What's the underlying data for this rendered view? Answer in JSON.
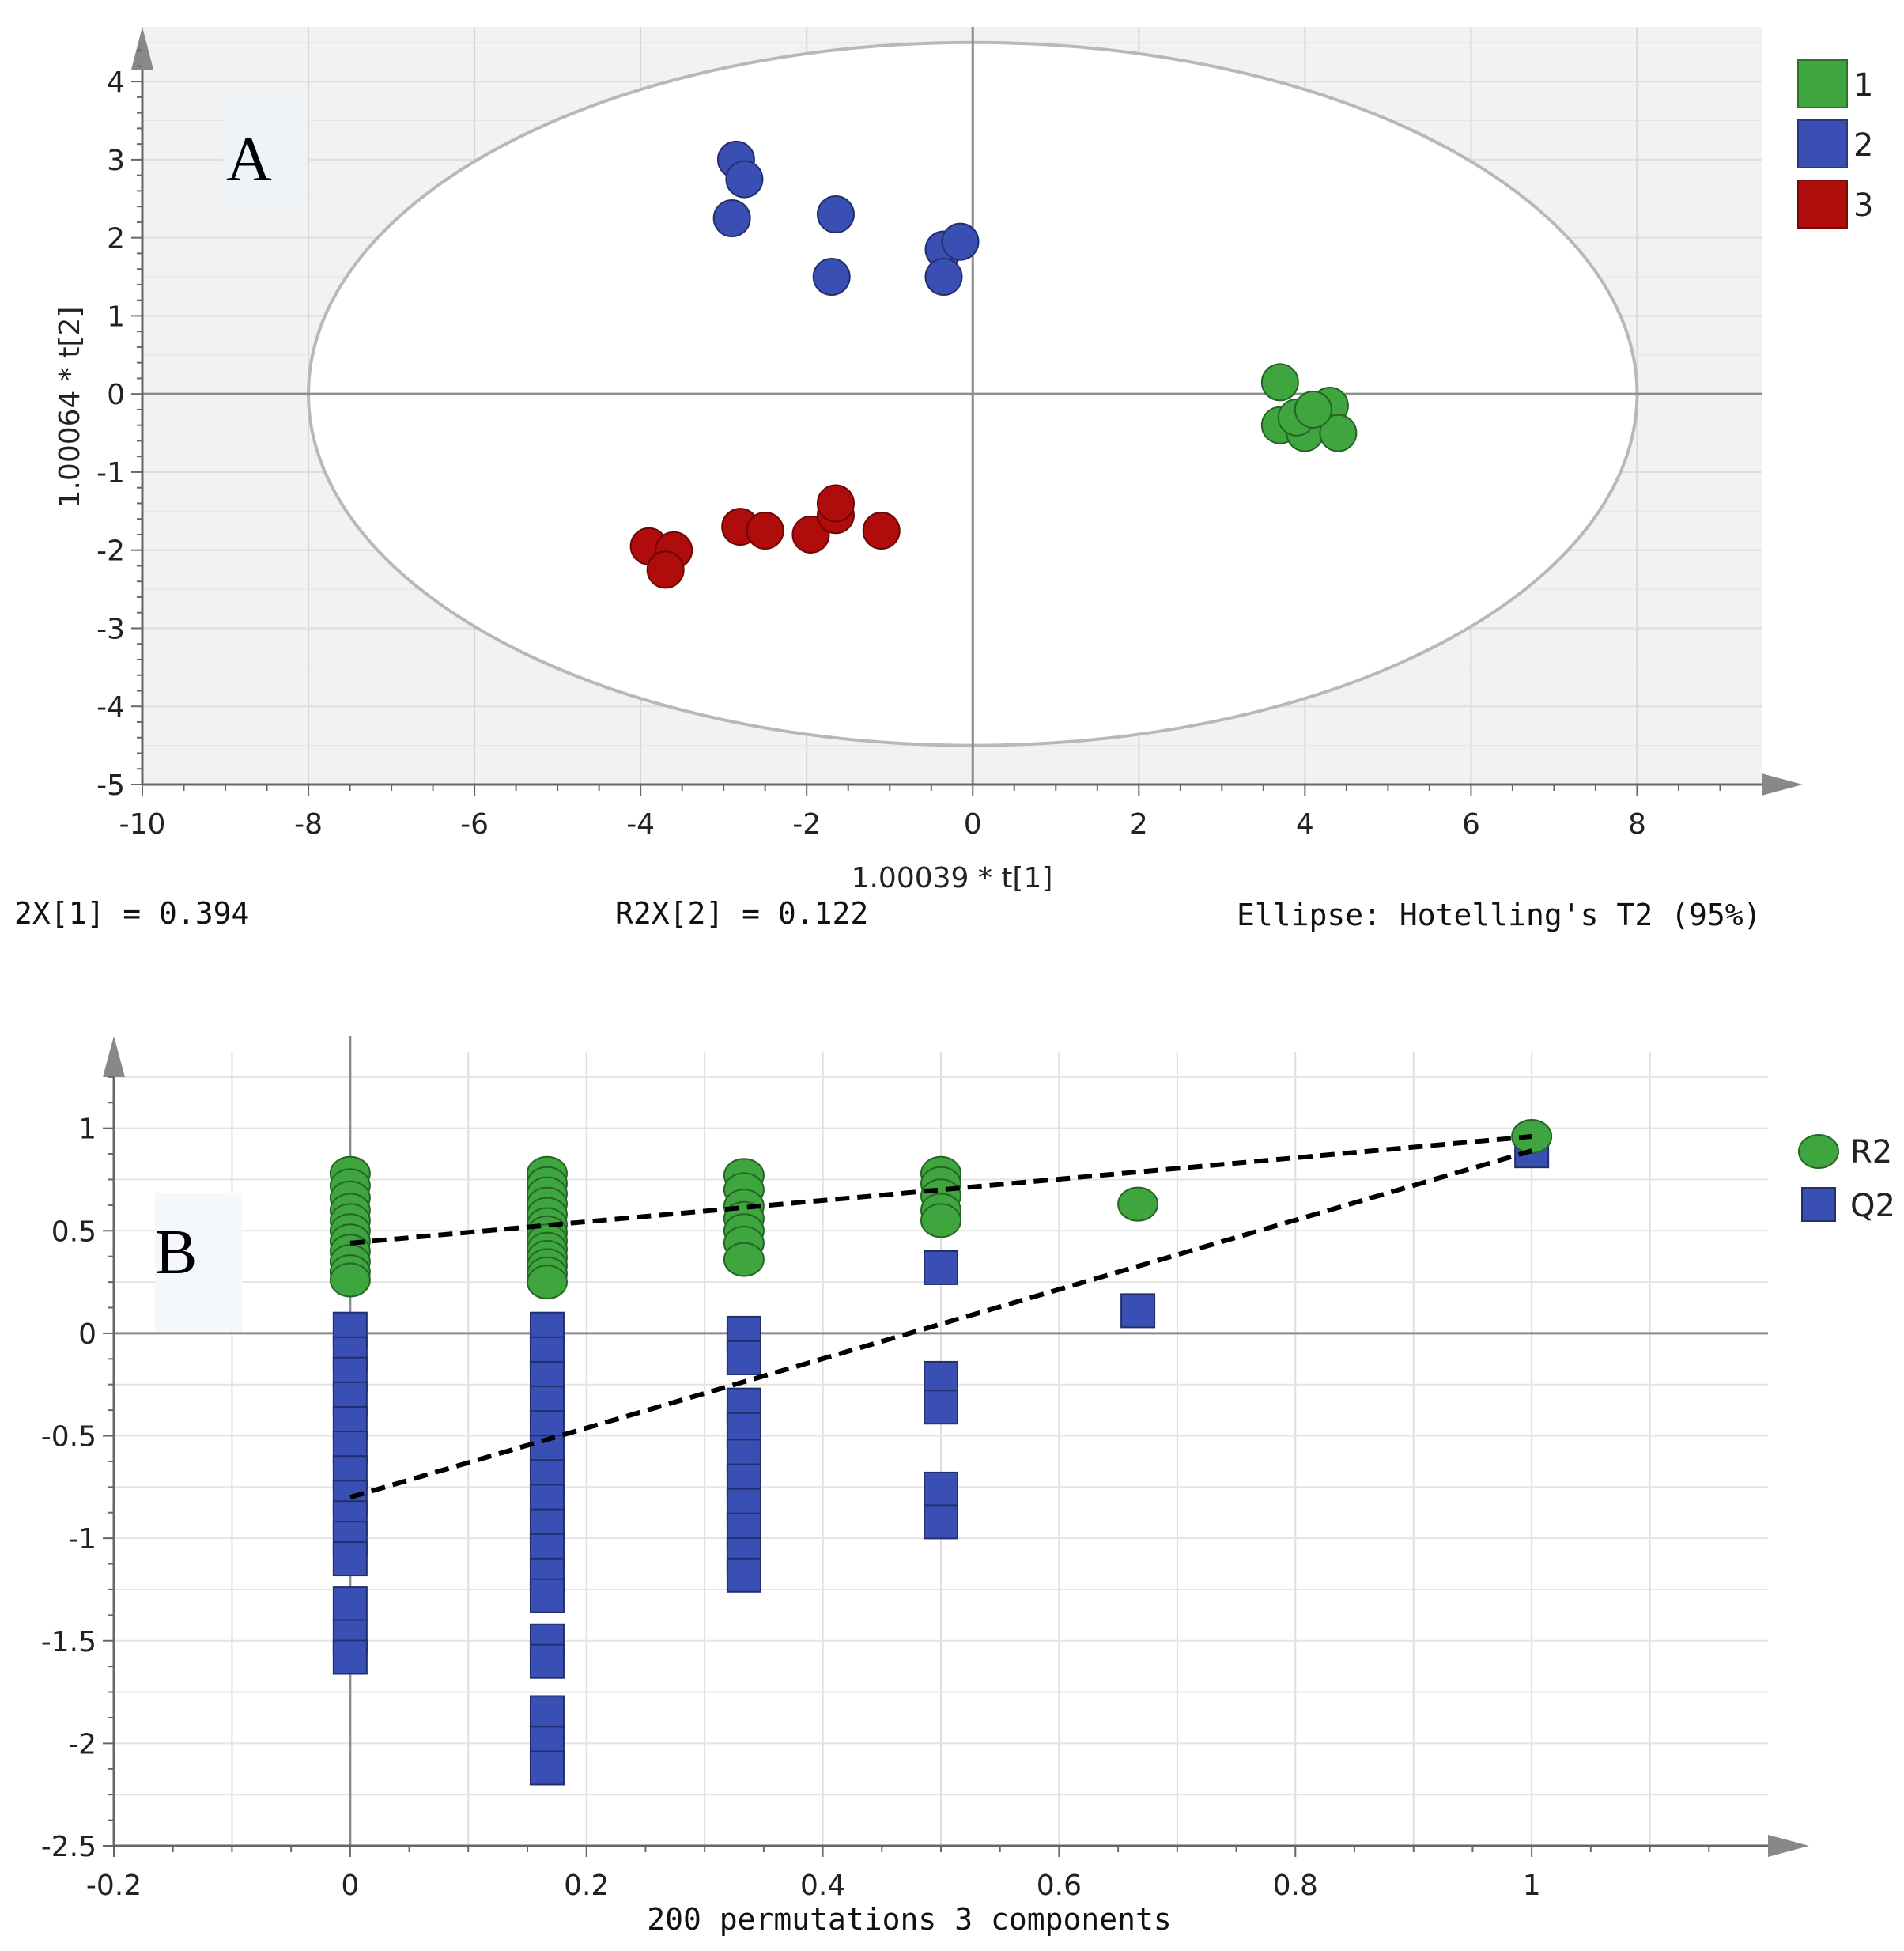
{
  "chart_data": [
    {
      "type": "scatter",
      "panel_label": "A",
      "title": "",
      "xlabel": "1.00039 * t[1]",
      "ylabel": "1.00064 * t[2]",
      "xlim": [
        -10,
        9.5
      ],
      "ylim": [
        -5,
        4.7
      ],
      "xticks": [
        -10,
        -8,
        -6,
        -4,
        -2,
        0,
        2,
        4,
        6,
        8
      ],
      "yticks": [
        -5,
        -4,
        -3,
        -2,
        -1,
        0,
        1,
        2,
        3,
        4
      ],
      "ellipse": {
        "center": [
          0,
          0
        ],
        "semi_x": 8,
        "semi_y": 4.5
      },
      "legend": {
        "position": "top-right"
      },
      "series": [
        {
          "name": "1",
          "color": "#3fa63f",
          "points": [
            [
              3.7,
              0.15
            ],
            [
              4.3,
              -0.15
            ],
            [
              3.7,
              -0.4
            ],
            [
              4.0,
              -0.5
            ],
            [
              4.4,
              -0.5
            ],
            [
              3.9,
              -0.3
            ],
            [
              4.1,
              -0.2
            ]
          ]
        },
        {
          "name": "2",
          "color": "#3a4fb4",
          "points": [
            [
              -2.85,
              3.0
            ],
            [
              -2.75,
              2.75
            ],
            [
              -2.9,
              2.25
            ],
            [
              -1.65,
              2.3
            ],
            [
              -1.7,
              1.5
            ],
            [
              -0.35,
              1.85
            ],
            [
              -0.15,
              1.95
            ],
            [
              -0.35,
              1.5
            ]
          ]
        },
        {
          "name": "3",
          "color": "#b00c0c",
          "points": [
            [
              -3.9,
              -1.95
            ],
            [
              -3.6,
              -2.0
            ],
            [
              -3.7,
              -2.25
            ],
            [
              -2.8,
              -1.7
            ],
            [
              -2.5,
              -1.75
            ],
            [
              -1.95,
              -1.8
            ],
            [
              -1.65,
              -1.55
            ],
            [
              -1.65,
              -1.4
            ],
            [
              -1.1,
              -1.75
            ]
          ]
        }
      ],
      "footer": {
        "r2x1": "2X[1] = 0.394",
        "r2x2": "R2X[2] = 0.122",
        "ellipse_note": "Ellipse: Hotelling's T2 (95%)"
      }
    },
    {
      "type": "scatter",
      "panel_label": "B",
      "title": "",
      "xlabel": "200 permutations 3 components",
      "ylabel": "",
      "xlim": [
        -0.2,
        1.2
      ],
      "ylim": [
        -2.5,
        1.45
      ],
      "xticks": [
        -0.2,
        0,
        0.2,
        0.4,
        0.6,
        0.8,
        1
      ],
      "yticks": [
        -2.5,
        -2,
        -1.5,
        -1,
        -0.5,
        0,
        0.5,
        1
      ],
      "ytick_labels": [
        "-2.5",
        "-2",
        "-1.5",
        "-1",
        "-0.5",
        "0",
        "0.5",
        "1"
      ],
      "legend": {
        "position": "top-right"
      },
      "series": [
        {
          "name": "R2",
          "color": "#3fa63f",
          "marker": "circle",
          "groups": [
            {
              "x": 0,
              "y": [
                0.78,
                0.72,
                0.66,
                0.6,
                0.55,
                0.5,
                0.45,
                0.4,
                0.35,
                0.3,
                0.26
              ]
            },
            {
              "x": 0.1667,
              "y": [
                0.78,
                0.73,
                0.68,
                0.63,
                0.58,
                0.53,
                0.49,
                0.45,
                0.41,
                0.37,
                0.33,
                0.29,
                0.25
              ]
            },
            {
              "x": 0.3333,
              "y": [
                0.77,
                0.7,
                0.62,
                0.56,
                0.5,
                0.44,
                0.36
              ]
            },
            {
              "x": 0.5,
              "y": [
                0.78,
                0.73,
                0.67,
                0.6,
                0.55
              ]
            },
            {
              "x": 0.6667,
              "y": [
                0.63
              ]
            },
            {
              "x": 1,
              "y": [
                0.96
              ]
            }
          ]
        },
        {
          "name": "Q2",
          "color": "#3a4fb4",
          "marker": "square",
          "groups": [
            {
              "x": 0,
              "y": [
                0.44,
                0.02,
                -0.1,
                -0.2,
                -0.32,
                -0.44,
                -0.56,
                -0.68,
                -0.8,
                -0.9,
                -1.0,
                -1.1,
                -1.32,
                -1.48,
                -1.58
              ]
            },
            {
              "x": 0.1667,
              "y": [
                0.02,
                -0.1,
                -0.22,
                -0.34,
                -0.46,
                -0.58,
                -0.7,
                -0.82,
                -0.94,
                -1.06,
                -1.18,
                -1.28,
                -1.5,
                -1.6,
                -1.85,
                -2.0,
                -2.12
              ]
            },
            {
              "x": 0.3333,
              "y": [
                0.0,
                -0.12,
                -0.35,
                -0.47,
                -0.6,
                -0.72,
                -0.84,
                -0.96,
                -1.08,
                -1.18
              ]
            },
            {
              "x": 0.5,
              "y": [
                0.32,
                -0.22,
                -0.36,
                -0.76,
                -0.92
              ]
            },
            {
              "x": 0.6667,
              "y": [
                0.11
              ]
            },
            {
              "x": 1,
              "y": [
                0.89
              ]
            }
          ]
        }
      ],
      "regression_lines": [
        {
          "name": "R2",
          "from": [
            0,
            0.44
          ],
          "to": [
            1,
            0.96
          ]
        },
        {
          "name": "Q2",
          "from": [
            0,
            -0.8
          ],
          "to": [
            1,
            0.89
          ]
        }
      ]
    }
  ]
}
